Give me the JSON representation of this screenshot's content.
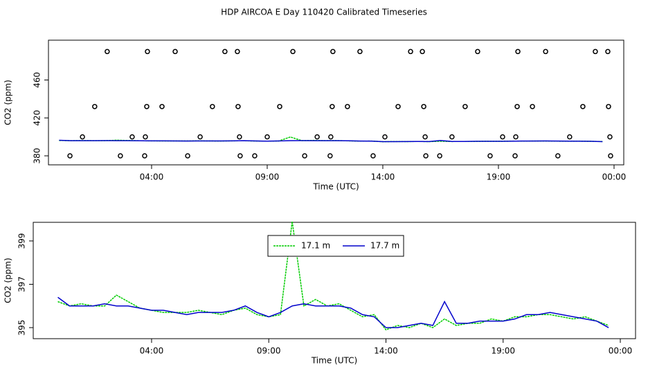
{
  "chart_data": [
    {
      "type": "line",
      "title": "HDP AIRCOA E  Day 110420  Calibrated Timeseries",
      "xlabel": "Time (UTC)",
      "ylabel": "CO2 (ppm)",
      "xlim": [
        -0.46,
        24.42
      ],
      "ylim": [
        370.5,
        502
      ],
      "xticks": [
        {
          "value": 4,
          "label": "04:00"
        },
        {
          "value": 9,
          "label": "09:00"
        },
        {
          "value": 14,
          "label": "14:00"
        },
        {
          "value": 19,
          "label": "19:00"
        },
        {
          "value": 24,
          "label": "00:00"
        }
      ],
      "yticks": [
        380,
        420,
        460
      ],
      "x": [
        0,
        0.5,
        1,
        1.5,
        2,
        2.5,
        3,
        3.5,
        4,
        4.5,
        5,
        5.5,
        6,
        6.5,
        7,
        7.5,
        8,
        8.5,
        9,
        9.5,
        10,
        10.5,
        11,
        11.5,
        12,
        12.5,
        13,
        13.5,
        14,
        14.5,
        15,
        15.5,
        16,
        16.5,
        17,
        17.5,
        18,
        18.5,
        19,
        19.5,
        20,
        20.5,
        21,
        21.5,
        22,
        22.5,
        23,
        23.5
      ],
      "series": [
        {
          "color": "#00cc00",
          "values": [
            396.2,
            396.0,
            396.1,
            396.0,
            396.0,
            396.5,
            396.2,
            395.9,
            395.8,
            395.7,
            395.7,
            395.7,
            395.8,
            395.7,
            395.6,
            395.8,
            395.9,
            395.6,
            395.5,
            395.6,
            399.9,
            396.0,
            396.3,
            396.0,
            396.1,
            395.8,
            395.5,
            395.6,
            394.9,
            395.1,
            395.0,
            395.2,
            395.0,
            395.4,
            395.1,
            395.2,
            395.2,
            395.4,
            395.3,
            395.5,
            395.5,
            395.6,
            395.6,
            395.5,
            395.4,
            395.5,
            395.3,
            395.1
          ]
        },
        {
          "color": "#0000cc",
          "values": [
            396.4,
            396.0,
            396.0,
            396.0,
            396.1,
            396.0,
            396.0,
            395.9,
            395.8,
            395.8,
            395.7,
            395.6,
            395.7,
            395.7,
            395.7,
            395.8,
            396.0,
            395.7,
            395.5,
            395.7,
            396.0,
            396.1,
            396.0,
            396.0,
            396.0,
            395.9,
            395.6,
            395.5,
            395.0,
            395.0,
            395.1,
            395.2,
            395.1,
            396.2,
            395.2,
            395.2,
            395.3,
            395.3,
            395.3,
            395.4,
            395.6,
            395.6,
            395.7,
            395.6,
            395.5,
            395.4,
            395.3,
            395.0
          ]
        }
      ],
      "points": {
        "x": [
          2.08,
          3.82,
          5.02,
          7.17,
          7.71,
          10.11,
          11.84,
          13.01,
          15.2,
          15.71,
          18.1,
          19.84,
          21.04,
          23.19,
          23.73,
          1.54,
          3.79,
          4.45,
          6.63,
          7.74,
          9.54,
          11.81,
          12.47,
          14.66,
          15.77,
          17.56,
          19.81,
          20.47,
          22.65,
          23.76,
          1.01,
          3.16,
          3.73,
          6.1,
          7.8,
          9.0,
          11.16,
          11.75,
          14.09,
          15.83,
          16.99,
          19.18,
          19.75,
          22.08,
          23.82,
          0.47,
          2.65,
          3.7,
          5.56,
          7.83,
          8.46,
          10.62,
          11.72,
          13.58,
          15.86,
          16.46,
          18.64,
          19.72,
          21.57,
          23.85
        ],
        "values": [
          490,
          490,
          490,
          490,
          490,
          490,
          490,
          490,
          490,
          490,
          490,
          490,
          490,
          490,
          490,
          432,
          432,
          432,
          432,
          432,
          432,
          432,
          432,
          432,
          432,
          432,
          432,
          432,
          432,
          432,
          400,
          400,
          400,
          400,
          400,
          400,
          400,
          400,
          400,
          400,
          400,
          400,
          400,
          400,
          400,
          380,
          380,
          380,
          380,
          380,
          380,
          380,
          380,
          380,
          380,
          380,
          380,
          380,
          380,
          380
        ]
      }
    },
    {
      "type": "line",
      "xlabel": "Time (UTC)",
      "ylabel": "CO2 (ppm)",
      "xlim": [
        -1.05,
        24.65
      ],
      "ylim": [
        394.49,
        399.86
      ],
      "xticks": [
        {
          "value": 4,
          "label": "04:00"
        },
        {
          "value": 9,
          "label": "09:00"
        },
        {
          "value": 14,
          "label": "14:00"
        },
        {
          "value": 19,
          "label": "19:00"
        },
        {
          "value": 24,
          "label": "00:00"
        }
      ],
      "yticks": [
        395,
        397,
        399
      ],
      "legend": "top",
      "x": [
        0,
        0.5,
        1,
        1.5,
        2,
        2.5,
        3,
        3.5,
        4,
        4.5,
        5,
        5.5,
        6,
        6.5,
        7,
        7.5,
        8,
        8.5,
        9,
        9.5,
        10,
        10.5,
        11,
        11.5,
        12,
        12.5,
        13,
        13.5,
        14,
        14.5,
        15,
        15.5,
        16,
        16.5,
        17,
        17.5,
        18,
        18.5,
        19,
        19.5,
        20,
        20.5,
        21,
        21.5,
        22,
        22.5,
        23,
        23.5
      ],
      "series": [
        {
          "name": "17.1 m",
          "color": "#00cc00",
          "values": [
            396.2,
            396.0,
            396.1,
            396.0,
            396.0,
            396.5,
            396.2,
            395.9,
            395.8,
            395.7,
            395.7,
            395.7,
            395.8,
            395.7,
            395.6,
            395.8,
            395.9,
            395.6,
            395.5,
            395.6,
            399.9,
            396.0,
            396.3,
            396.0,
            396.1,
            395.8,
            395.5,
            395.6,
            394.9,
            395.1,
            395.0,
            395.2,
            395.0,
            395.4,
            395.1,
            395.2,
            395.2,
            395.4,
            395.3,
            395.5,
            395.5,
            395.6,
            395.6,
            395.5,
            395.4,
            395.5,
            395.3,
            395.1
          ]
        },
        {
          "name": "17.7 m",
          "color": "#0000cc",
          "values": [
            396.4,
            396.0,
            396.0,
            396.0,
            396.1,
            396.0,
            396.0,
            395.9,
            395.8,
            395.8,
            395.7,
            395.6,
            395.7,
            395.7,
            395.7,
            395.8,
            396.0,
            395.7,
            395.5,
            395.7,
            396.0,
            396.1,
            396.0,
            396.0,
            396.0,
            395.9,
            395.6,
            395.5,
            395.0,
            395.0,
            395.1,
            395.2,
            395.1,
            396.2,
            395.2,
            395.2,
            395.3,
            395.3,
            395.3,
            395.4,
            395.6,
            395.6,
            395.7,
            395.6,
            395.5,
            395.4,
            395.3,
            395.0
          ]
        }
      ]
    }
  ]
}
